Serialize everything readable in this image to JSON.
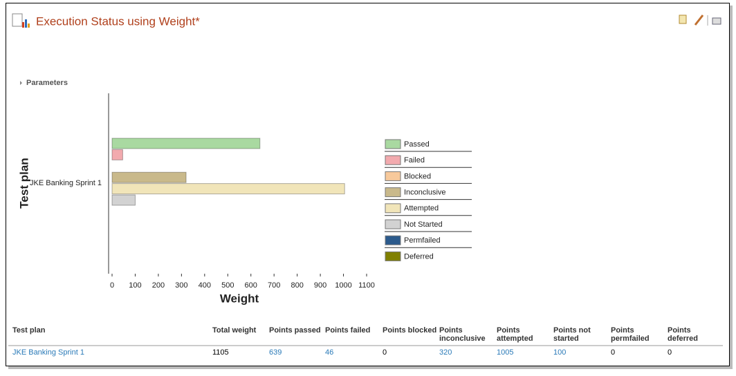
{
  "header": {
    "title": "Execution Status using Weight*",
    "parameters": "Parameters"
  },
  "chart_data": {
    "type": "bar",
    "orientation": "horizontal",
    "x_label": "Weight",
    "y_label": "Test plan",
    "categories": [
      "JKE Banking Sprint 1"
    ],
    "series": [
      {
        "name": "Passed",
        "color": "#a9d9a1",
        "values": [
          639
        ]
      },
      {
        "name": "Failed",
        "color": "#f2aaae",
        "values": [
          46
        ]
      },
      {
        "name": "Blocked",
        "color": "#f7c99b",
        "values": [
          0
        ]
      },
      {
        "name": "Inconclusive",
        "color": "#c9b98b",
        "values": [
          320
        ]
      },
      {
        "name": "Attempted",
        "color": "#f1e5b9",
        "values": [
          1005
        ]
      },
      {
        "name": "Not Started",
        "color": "#d2d2d2",
        "values": [
          100
        ]
      },
      {
        "name": "Permfailed",
        "color": "#2b5a8c",
        "values": [
          0
        ]
      },
      {
        "name": "Deferred",
        "color": "#808000",
        "values": [
          0
        ]
      }
    ],
    "xlim": [
      0,
      1100
    ],
    "xticks": [
      0,
      100,
      200,
      300,
      400,
      500,
      600,
      700,
      800,
      900,
      1000,
      1100
    ],
    "legend": "right"
  },
  "table": {
    "header": [
      "Test plan",
      "Total weight",
      "Points passed",
      "Points failed",
      "Points blocked",
      "Points inconclusive",
      "Points attempted",
      "Points not started",
      "Points permfailed",
      "Points deferred"
    ],
    "rows": [
      [
        "JKE Banking Sprint 1",
        1105,
        639,
        46,
        0,
        320,
        1005,
        100,
        0,
        0
      ]
    ]
  }
}
